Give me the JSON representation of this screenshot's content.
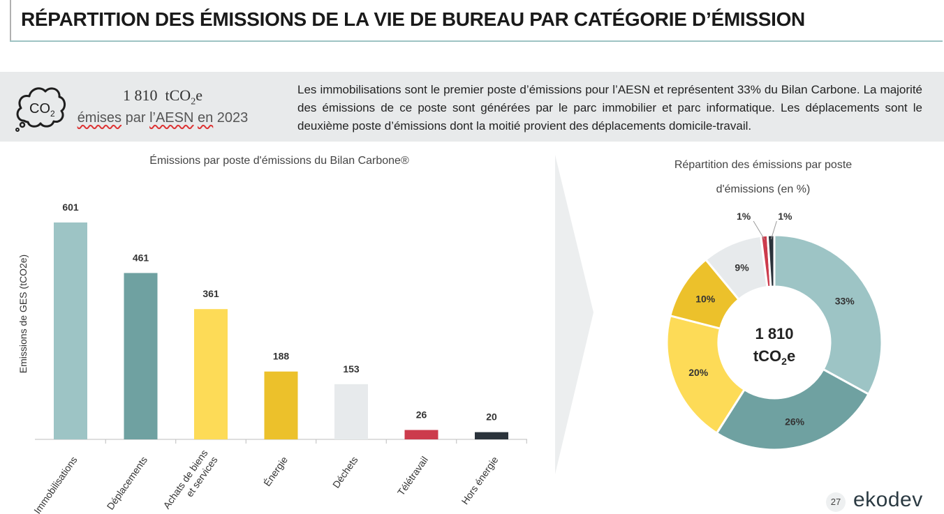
{
  "header": {
    "title": "RÉPARTITION DES ÉMISSIONS DE LA VIE DE BUREAU PAR CATÉGORIE D’ÉMISSION"
  },
  "kpi": {
    "value": "1 810",
    "unit_prefix": "tCO",
    "unit_sub": "2",
    "unit_suffix": "e",
    "sub_a": "émises",
    "sub_b": " par ",
    "sub_c": "l’AESN",
    "sub_d": " ",
    "sub_e": "en",
    "sub_f": " 2023",
    "icon": "co2-cloud-icon",
    "icon_text": "CO",
    "icon_sub": "2"
  },
  "banner": {
    "text": "Les immobilisations sont le premier poste d’émissions pour l’AESN et représentent 33% du Bilan Carbone. La majorité des émissions de ce poste sont générées par le parc immobilier et parc informatique. Les déplacements sont le deuxième poste d’émissions dont la moitié provient des déplacements domicile-travail."
  },
  "chart_data": [
    {
      "type": "bar",
      "title": "Émissions par poste d'émissions du Bilan Carbone®",
      "ylabel": "Emissions de GES (tCO2e)",
      "xlabel": "",
      "categories": [
        "Immobilisations",
        "Déplacements",
        "Achats de biens et services",
        "Énergie",
        "Déchets",
        "Télétravail",
        "Hors énergie"
      ],
      "category_lines": [
        [
          "Immobilisations"
        ],
        [
          "Déplacements"
        ],
        [
          "Achats de biens",
          "et services"
        ],
        [
          "Énergie"
        ],
        [
          "Déchets"
        ],
        [
          "Télétravail"
        ],
        [
          "Hors énergie"
        ]
      ],
      "values": [
        601,
        461,
        361,
        188,
        153,
        26,
        20
      ],
      "colors": [
        "#9dc4c5",
        "#6fa1a1",
        "#fddb57",
        "#ecc12b",
        "#e7eaec",
        "#cc3b4c",
        "#2b333b"
      ],
      "ylim": [
        0,
        700
      ],
      "grid": false
    },
    {
      "type": "pie",
      "title_lines": [
        "Répartition des émissions par poste",
        "d'émissions (en %)"
      ],
      "values": [
        33,
        26,
        20,
        10,
        9,
        1,
        1
      ],
      "labels": [
        "33%",
        "26%",
        "20%",
        "10%",
        "9%",
        "1%",
        "1%"
      ],
      "colors": [
        "#9dc4c5",
        "#6fa1a1",
        "#fddb57",
        "#ecc12b",
        "#e7eaec",
        "#cc3b4c",
        "#2b333b"
      ],
      "center_value": "1 810",
      "center_unit_prefix": "tCO",
      "center_unit_sub": "2",
      "center_unit_suffix": "e"
    }
  ],
  "footer": {
    "page_number": "27",
    "logo_text": "ekodev"
  }
}
